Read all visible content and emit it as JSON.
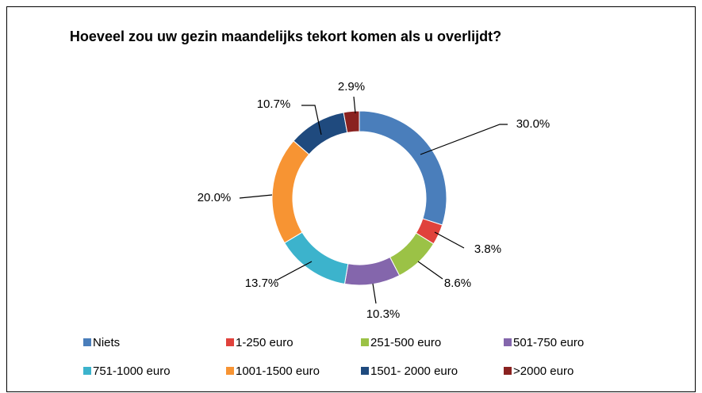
{
  "chart_data": {
    "type": "donut",
    "title": "Hoeveel zou uw gezin maandelijks tekort komen als u overlijdt?",
    "categories": [
      "Niets",
      "1-250 euro",
      "251-500 euro",
      "501-750 euro",
      "751-1000 euro",
      "1001-1500 euro",
      "1501- 2000 euro",
      ">2000 euro"
    ],
    "values": [
      30.0,
      3.8,
      8.6,
      10.3,
      13.7,
      20.0,
      10.7,
      2.9
    ],
    "value_labels": [
      "30.0%",
      "3.8%",
      "8.6%",
      "10.3%",
      "13.7%",
      "20.0%",
      "10.7%",
      "2.9%"
    ],
    "colors": [
      "#4a7ebb",
      "#e0423c",
      "#9bc246",
      "#8466ac",
      "#3cb3cc",
      "#f79433",
      "#1f4a7e",
      "#8a2220"
    ],
    "legend": "bottom"
  }
}
